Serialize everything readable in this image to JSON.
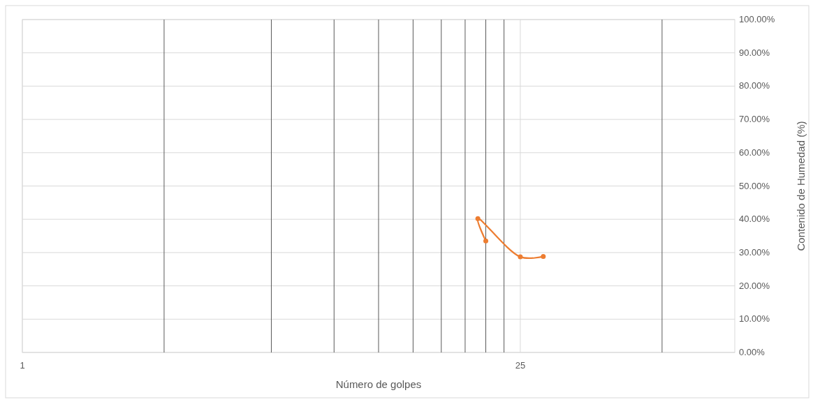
{
  "chart_data": {
    "type": "line",
    "xlabel": "Número de golpes",
    "ylabel": "Contenido de Humedad (%)",
    "x": [
      20,
      19,
      25,
      29
    ],
    "series": [
      {
        "color": "#ed7d31",
        "values": [
          33.5,
          40.2,
          28.7,
          28.8
        ]
      }
    ],
    "log": "x",
    "xlim": [
      1,
      100
    ],
    "xticks": [
      1,
      25
    ],
    "ylim": [
      0,
      100
    ],
    "yticks": [
      {
        "value": 0,
        "label": "0.00%"
      },
      {
        "value": 10,
        "label": "10.00%"
      },
      {
        "value": 20,
        "label": "20.00%"
      },
      {
        "value": 30,
        "label": "30.00%"
      },
      {
        "value": 40,
        "label": "40.00%"
      },
      {
        "value": 50,
        "label": "50.00%"
      },
      {
        "value": 60,
        "label": "60.00%"
      },
      {
        "value": 70,
        "label": "70.00%"
      },
      {
        "value": 80,
        "label": "80.00%"
      },
      {
        "value": 90,
        "label": "90.00%"
      },
      {
        "value": 100,
        "label": "100.00%"
      }
    ],
    "grid": true,
    "marker": "circle",
    "line_style": "solid",
    "ref_lines": [
      {
        "axis": "x",
        "value": 2.5,
        "color": "#595959"
      },
      {
        "axis": "x",
        "value": 5,
        "color": "#595959"
      },
      {
        "axis": "x",
        "value": 7.5,
        "color": "#595959"
      },
      {
        "axis": "x",
        "value": 10,
        "color": "#595959"
      },
      {
        "axis": "x",
        "value": 12.5,
        "color": "#595959"
      },
      {
        "axis": "x",
        "value": 15,
        "color": "#595959"
      },
      {
        "axis": "x",
        "value": 17.5,
        "color": "#595959"
      },
      {
        "axis": "x",
        "value": 20,
        "color": "#595959"
      },
      {
        "axis": "x",
        "value": 22.5,
        "color": "#595959"
      },
      {
        "axis": "x",
        "value": 62.5,
        "color": "#595959"
      }
    ]
  }
}
